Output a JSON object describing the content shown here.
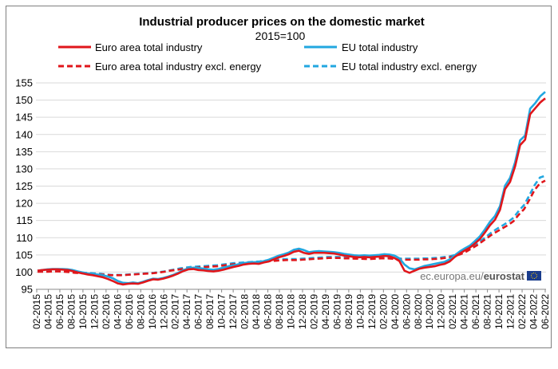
{
  "chart_data": {
    "type": "line",
    "title": "Industrial producer prices on the domestic market",
    "subtitle": "2015=100",
    "xlabel": "",
    "ylabel": "",
    "ylim": [
      95,
      155
    ],
    "yticks": [
      95,
      100,
      105,
      110,
      115,
      120,
      125,
      130,
      135,
      140,
      145,
      150,
      155
    ],
    "grid": "horizontal",
    "legend_position": "top",
    "x_tick_labels": [
      "02-2015",
      "04-2015",
      "06-2015",
      "08-2015",
      "10-2015",
      "12-2015",
      "02-2016",
      "04-2016",
      "06-2016",
      "08-2016",
      "10-2016",
      "12-2016",
      "02-2017",
      "04-2017",
      "06-2017",
      "08-2017",
      "10-2017",
      "12-2017",
      "02-2018",
      "04-2018",
      "06-2018",
      "08-2018",
      "10-2018",
      "12-2018",
      "02-2019",
      "04-2019",
      "06-2019",
      "08-2019",
      "10-2019",
      "12-2019",
      "02-2020",
      "04-2020",
      "06-2020",
      "08-2020",
      "10-2020",
      "12-2020",
      "02-2021",
      "04-2021",
      "06-2021",
      "08-2021",
      "10-2021",
      "12-2021",
      "02-2022",
      "04-2022",
      "06-2022"
    ],
    "x_range": [
      "01-2015",
      "06-2022"
    ],
    "series": [
      {
        "name": "EU total industry excl. energy",
        "color": "#22a7e0",
        "style": "dashed",
        "values": [
          100.2,
          100.2,
          100.2,
          100.3,
          100.3,
          100.2,
          100.1,
          100.0,
          99.9,
          99.8,
          99.7,
          99.6,
          99.5,
          99.3,
          99.2,
          99.2,
          99.2,
          99.3,
          99.4,
          99.5,
          99.6,
          99.7,
          99.8,
          100.0,
          100.2,
          100.5,
          100.8,
          101.1,
          101.3,
          101.5,
          101.6,
          101.7,
          101.8,
          101.9,
          102.0,
          102.2,
          102.4,
          102.6,
          102.7,
          102.8,
          102.9,
          103.0,
          103.1,
          103.3,
          103.5,
          103.6,
          103.7,
          103.8,
          103.8,
          103.8,
          103.9,
          104.0,
          104.1,
          104.2,
          104.3,
          104.4,
          104.4,
          104.4,
          104.3,
          104.3,
          104.2,
          104.2,
          104.1,
          104.1,
          104.2,
          104.3,
          104.3,
          104.2,
          104.0,
          103.9,
          103.9,
          103.9,
          103.9,
          104.0,
          104.0,
          104.1,
          104.2,
          104.4,
          104.6,
          105.0,
          105.6,
          106.3,
          107.2,
          108.2,
          109.3,
          110.5,
          111.7,
          112.7,
          113.6,
          114.6,
          115.8,
          117.8,
          119.5,
          122.3,
          125.3,
          127.5,
          128.0
        ]
      },
      {
        "name": "Euro area total industry excl. energy",
        "color": "#e0161b",
        "style": "dashed",
        "values": [
          100.1,
          100.1,
          100.1,
          100.2,
          100.2,
          100.1,
          100.0,
          99.8,
          99.7,
          99.6,
          99.5,
          99.4,
          99.3,
          99.2,
          99.1,
          99.1,
          99.1,
          99.2,
          99.3,
          99.4,
          99.5,
          99.6,
          99.7,
          99.9,
          100.1,
          100.4,
          100.6,
          100.8,
          101.0,
          101.2,
          101.3,
          101.4,
          101.5,
          101.6,
          101.7,
          101.9,
          102.1,
          102.3,
          102.4,
          102.5,
          102.6,
          102.7,
          102.8,
          103.0,
          103.2,
          103.3,
          103.4,
          103.5,
          103.5,
          103.5,
          103.6,
          103.7,
          103.8,
          103.9,
          104.0,
          104.1,
          104.1,
          104.1,
          104.0,
          104.0,
          103.9,
          103.9,
          103.8,
          103.8,
          103.9,
          104.0,
          104.0,
          103.9,
          103.7,
          103.6,
          103.6,
          103.6,
          103.6,
          103.7,
          103.7,
          103.8,
          103.9,
          104.1,
          104.3,
          104.7,
          105.2,
          105.9,
          106.8,
          107.7,
          108.8,
          109.9,
          111.0,
          111.9,
          112.8,
          113.7,
          114.8,
          116.7,
          118.3,
          121.0,
          123.9,
          125.8,
          126.6
        ]
      },
      {
        "name": "EU total industry",
        "color": "#22a7e0",
        "style": "solid",
        "values": [
          100.4,
          100.6,
          100.8,
          100.9,
          100.9,
          100.9,
          100.8,
          100.6,
          100.2,
          99.9,
          99.6,
          99.5,
          99.3,
          99.1,
          98.7,
          98.2,
          97.4,
          96.9,
          96.8,
          97.0,
          96.8,
          97.2,
          97.7,
          98.1,
          98.0,
          98.3,
          98.7,
          99.2,
          99.8,
          100.6,
          101.1,
          101.3,
          101.2,
          101.0,
          100.8,
          100.7,
          100.9,
          101.3,
          101.7,
          102.0,
          102.3,
          102.6,
          102.8,
          102.9,
          102.9,
          103.2,
          103.6,
          104.2,
          104.8,
          105.2,
          105.7,
          106.5,
          106.8,
          106.4,
          105.8,
          106.0,
          106.1,
          106.0,
          105.9,
          105.8,
          105.6,
          105.3,
          105.1,
          104.9,
          104.8,
          104.9,
          104.8,
          104.9,
          105.0,
          105.2,
          105.1,
          104.8,
          104.0,
          102.2,
          101.1,
          100.8,
          101.3,
          101.8,
          102.1,
          102.4,
          102.7,
          103.0,
          103.7,
          104.9,
          106.0,
          106.9,
          107.7,
          109.0,
          110.4,
          112.4,
          114.6,
          116.3,
          119.2,
          125.1,
          127.4,
          131.9,
          138.3,
          139.7,
          147.5,
          149.1,
          151.1,
          152.4
        ]
      },
      {
        "name": "Euro area total industry",
        "color": "#e0161b",
        "style": "solid",
        "values": [
          100.4,
          100.6,
          100.7,
          100.8,
          100.8,
          100.7,
          100.6,
          100.3,
          99.9,
          99.6,
          99.3,
          99.1,
          98.8,
          98.5,
          98.0,
          97.4,
          96.7,
          96.4,
          96.6,
          96.7,
          96.6,
          97.0,
          97.5,
          97.9,
          97.8,
          98.1,
          98.5,
          99.0,
          99.6,
          100.3,
          100.8,
          100.9,
          100.6,
          100.5,
          100.3,
          100.2,
          100.4,
          100.7,
          101.1,
          101.5,
          101.8,
          102.2,
          102.4,
          102.5,
          102.4,
          102.8,
          103.1,
          103.7,
          104.3,
          104.7,
          105.2,
          105.9,
          106.2,
          105.6,
          105.3,
          105.6,
          105.6,
          105.6,
          105.5,
          105.4,
          105.1,
          104.8,
          104.6,
          104.4,
          104.3,
          104.4,
          104.3,
          104.4,
          104.5,
          104.7,
          104.6,
          104.1,
          103.2,
          100.4,
          99.8,
          100.4,
          101.0,
          101.3,
          101.5,
          101.7,
          102.1,
          102.4,
          103.1,
          104.4,
          105.4,
          106.3,
          107.1,
          108.3,
          109.6,
          111.5,
          113.6,
          115.2,
          118.1,
          124.1,
          126.2,
          130.7,
          136.9,
          138.5,
          145.9,
          147.6,
          149.3,
          150.5
        ]
      }
    ]
  },
  "legend": [
    {
      "label": "Euro area total industry",
      "color": "#e0161b",
      "style": "solid"
    },
    {
      "label": "EU total industry",
      "color": "#22a7e0",
      "style": "solid"
    },
    {
      "label": "Euro area total industry excl. energy",
      "color": "#e0161b",
      "style": "dashed"
    },
    {
      "label": "EU total industry excl. energy",
      "color": "#22a7e0",
      "style": "dashed"
    }
  ],
  "source": {
    "prefix": "ec.europa.eu/",
    "brand": "eurostat",
    "flag_icon": "eu-flag-icon",
    "flag_color": "#1a3c8c"
  }
}
